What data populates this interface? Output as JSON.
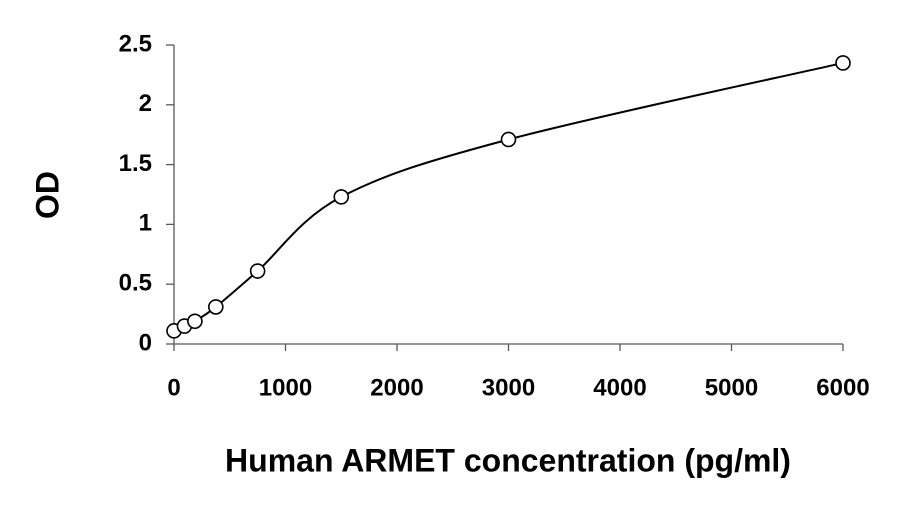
{
  "chart_data": {
    "type": "scatter",
    "x_label": "Human ARMET concentration (pg/ml)",
    "y_label": "OD",
    "x": [
      0,
      93.75,
      187.5,
      375,
      750,
      1500,
      3000,
      6000
    ],
    "values": [
      0.11,
      0.15,
      0.19,
      0.31,
      0.61,
      1.23,
      1.71,
      2.35
    ],
    "color": "#000000",
    "trendline": true,
    "xlim": [
      0,
      6000
    ],
    "xticks": [
      0,
      1000,
      2000,
      3000,
      4000,
      5000,
      6000
    ],
    "ylim": [
      0,
      2.5
    ],
    "yticks": [
      0,
      0.5,
      1,
      1.5,
      2,
      2.5
    ],
    "grid": false
  }
}
